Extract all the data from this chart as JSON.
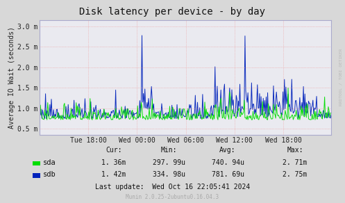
{
  "title": "Disk latency per device - by day",
  "ylabel": "Average IO Wait (seconds)",
  "background_color": "#d8d8d8",
  "plot_background": "#eaeaf0",
  "grid_color": "#ee8888",
  "ylim_min": 0.35,
  "ylim_max": 3.15,
  "ytick_vals": [
    0.5,
    1.0,
    1.5,
    2.0,
    2.5,
    3.0
  ],
  "ytick_labels": [
    "0.5 m",
    "1.0 m",
    "1.5 m",
    "2.0 m",
    "2.5 m",
    "3.0 m"
  ],
  "xtick_labels": [
    "Tue 18:00",
    "Wed 00:00",
    "Wed 06:00",
    "Wed 12:00",
    "Wed 18:00"
  ],
  "sda_color": "#00dd00",
  "sdb_color": "#0022bb",
  "cur_label": "Cur:",
  "min_label": "Min:",
  "avg_label": "Avg:",
  "max_label": "Max:",
  "sda_cur": "1. 36m",
  "sda_min": "297. 99u",
  "sda_avg": "740. 94u",
  "sda_max": "2. 71m",
  "sdb_cur": "1. 42m",
  "sdb_min": "334. 98u",
  "sdb_avg": "781. 69u",
  "sdb_max": "2. 75m",
  "last_update": "Last update:  Wed Oct 16 22:05:41 2024",
  "munin_version": "Munin 2.0.25-2ubuntu0.16.04.3",
  "watermark": "RRDTOOL / TOBI OETIKER",
  "title_fontsize": 10,
  "axis_fontsize": 7,
  "legend_fontsize": 7.5,
  "stats_fontsize": 7
}
